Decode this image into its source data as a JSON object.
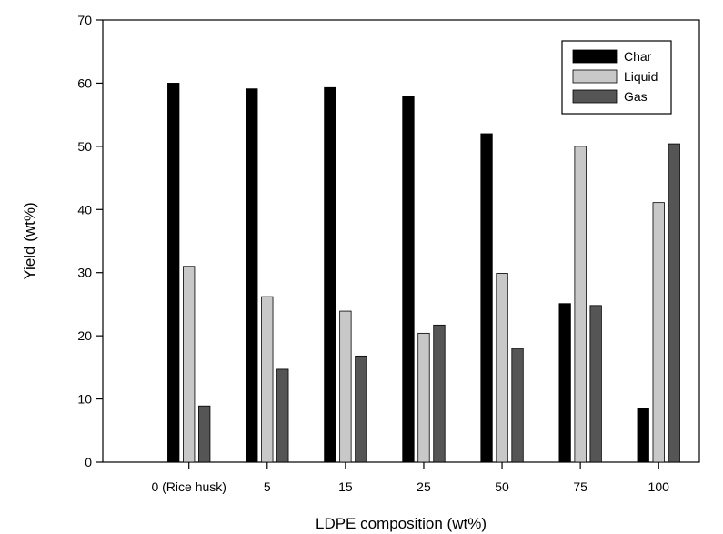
{
  "chart_data": {
    "type": "bar",
    "title": "",
    "xlabel": "LDPE composition (wt%)",
    "ylabel": "Yield (wt%)",
    "categories": [
      "0 (Rice husk)",
      "5",
      "15",
      "25",
      "50",
      "75",
      "100"
    ],
    "ylim": [
      0,
      70
    ],
    "yticks": [
      0,
      10,
      20,
      30,
      40,
      50,
      60,
      70
    ],
    "grid": false,
    "legend_position": "top-right",
    "series": [
      {
        "name": "Char",
        "color": "#000000",
        "values": [
          60.0,
          59.1,
          59.3,
          57.9,
          52.0,
          25.1,
          8.5
        ]
      },
      {
        "name": "Liquid",
        "color": "#c8c8c8",
        "values": [
          31.0,
          26.2,
          23.9,
          20.4,
          29.9,
          50.0,
          41.1
        ]
      },
      {
        "name": "Gas",
        "color": "#555555",
        "values": [
          8.9,
          14.7,
          16.8,
          21.7,
          18.0,
          24.8,
          50.4
        ]
      }
    ]
  }
}
